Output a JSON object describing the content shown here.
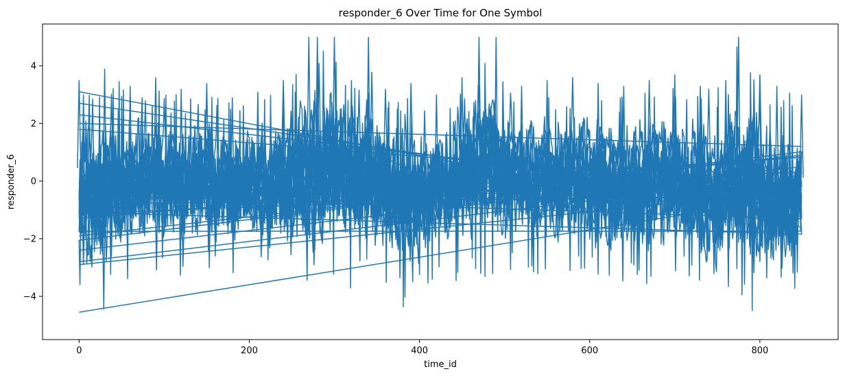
{
  "chart_data": {
    "type": "line",
    "title": "responder_6 Over Time for One Symbol",
    "xlabel": "time_id",
    "ylabel": "responder_6",
    "xlim": [
      -43,
      892
    ],
    "ylim": [
      -5.5,
      5.45
    ],
    "xticks": [
      0,
      200,
      400,
      600,
      800
    ],
    "xtick_labels": [
      "0",
      "200",
      "400",
      "600",
      "800"
    ],
    "yticks": [
      -4,
      -2,
      0,
      2,
      4
    ],
    "ytick_labels": [
      "−4",
      "−2",
      "0",
      "2",
      "4"
    ],
    "grid": false,
    "legend": "none",
    "series_color": "#1f77b4",
    "line_width": 1.5,
    "series": [
      {
        "description_of_shape": "many days of dense noisy series concatenated; x wraps from 849 back to 0 each day",
        "x_range": [
          0,
          849
        ],
        "clip": [
          -5,
          5
        ],
        "x": [
          0,
          30,
          60,
          90,
          120,
          150,
          180,
          210,
          240,
          270,
          280,
          300,
          320,
          340,
          360,
          390,
          420,
          450,
          470,
          490,
          520,
          550,
          580,
          610,
          640,
          670,
          700,
          730,
          740,
          760,
          775,
          800,
          820,
          849
        ],
        "upper_envelope": [
          3.5,
          3.9,
          3.3,
          3.6,
          3.2,
          3.4,
          2.9,
          3.1,
          3.5,
          5.0,
          5.0,
          5.0,
          3.5,
          5.0,
          3.2,
          3.4,
          3.0,
          3.6,
          5.0,
          5.0,
          3.3,
          3.5,
          3.6,
          3.4,
          3.3,
          3.5,
          3.7,
          3.3,
          3.2,
          3.5,
          5.0,
          3.7,
          3.3,
          3.0
        ],
        "lower_envelope": [
          -5.0,
          -4.9,
          -3.6,
          -3.4,
          -3.6,
          -3.3,
          -3.5,
          -3.5,
          -3.6,
          -4.6,
          -3.8,
          -3.6,
          -3.8,
          -3.5,
          -3.9,
          -4.7,
          -3.3,
          -3.6,
          -3.4,
          -3.5,
          -3.4,
          -3.3,
          -3.4,
          -3.5,
          -3.8,
          -3.6,
          -3.4,
          -3.5,
          -5.0,
          -4.0,
          -4.0,
          -4.9,
          -5.0,
          -3.5
        ]
      }
    ],
    "wrap_segments": [
      {
        "x": [
          849,
          0
        ],
        "y": [
          -1.6,
          3.1
        ]
      },
      {
        "x": [
          849,
          0
        ],
        "y": [
          -1.0,
          2.7
        ]
      },
      {
        "x": [
          849,
          0
        ],
        "y": [
          -0.6,
          2.3
        ]
      },
      {
        "x": [
          849,
          0
        ],
        "y": [
          -0.2,
          1.8
        ]
      },
      {
        "x": [
          849,
          0
        ],
        "y": [
          0.5,
          -2.4
        ]
      },
      {
        "x": [
          849,
          0
        ],
        "y": [
          0.2,
          -2.8
        ]
      },
      {
        "x": [
          849,
          0
        ],
        "y": [
          -0.3,
          -2.9
        ]
      },
      {
        "x": [
          849,
          0
        ],
        "y": [
          -0.5,
          -4.55
        ]
      },
      {
        "x": [
          849,
          0
        ],
        "y": [
          0.9,
          -1.9
        ]
      },
      {
        "x": [
          849,
          0
        ],
        "y": [
          1.2,
          2.0
        ]
      }
    ]
  }
}
